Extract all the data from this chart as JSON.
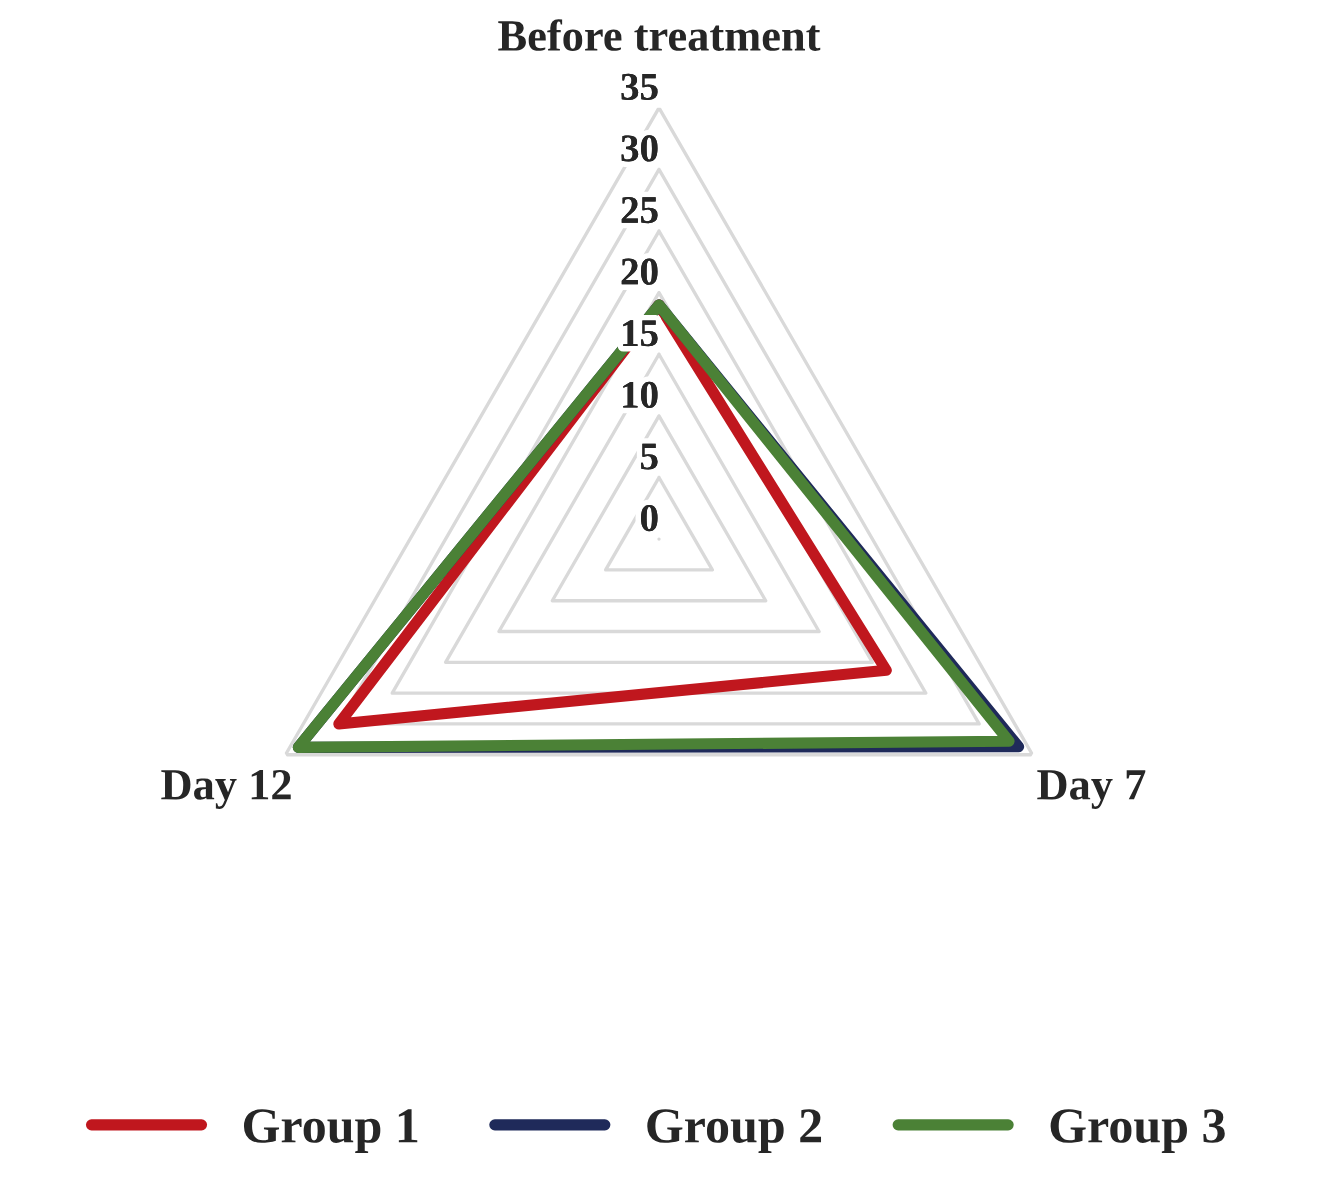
{
  "chart_data": {
    "type": "radar",
    "categories": [
      "Before treatment",
      "Day 7",
      "Day 12"
    ],
    "series": [
      {
        "name": "Group 1",
        "color": "#c0171e",
        "values": [
          19,
          21.3,
          30
        ]
      },
      {
        "name": "Group 2",
        "color": "#1f2a5a",
        "values": [
          19,
          33.7,
          33.8
        ]
      },
      {
        "name": "Group 3",
        "color": "#4b8136",
        "values": [
          19,
          32.8,
          33.8
        ]
      }
    ],
    "ylim": [
      0,
      35
    ],
    "yticks": [
      0,
      5,
      10,
      15,
      20,
      25,
      30,
      35
    ],
    "grid": true,
    "legend": "bottom",
    "line_style": "solid",
    "marker": "none"
  }
}
